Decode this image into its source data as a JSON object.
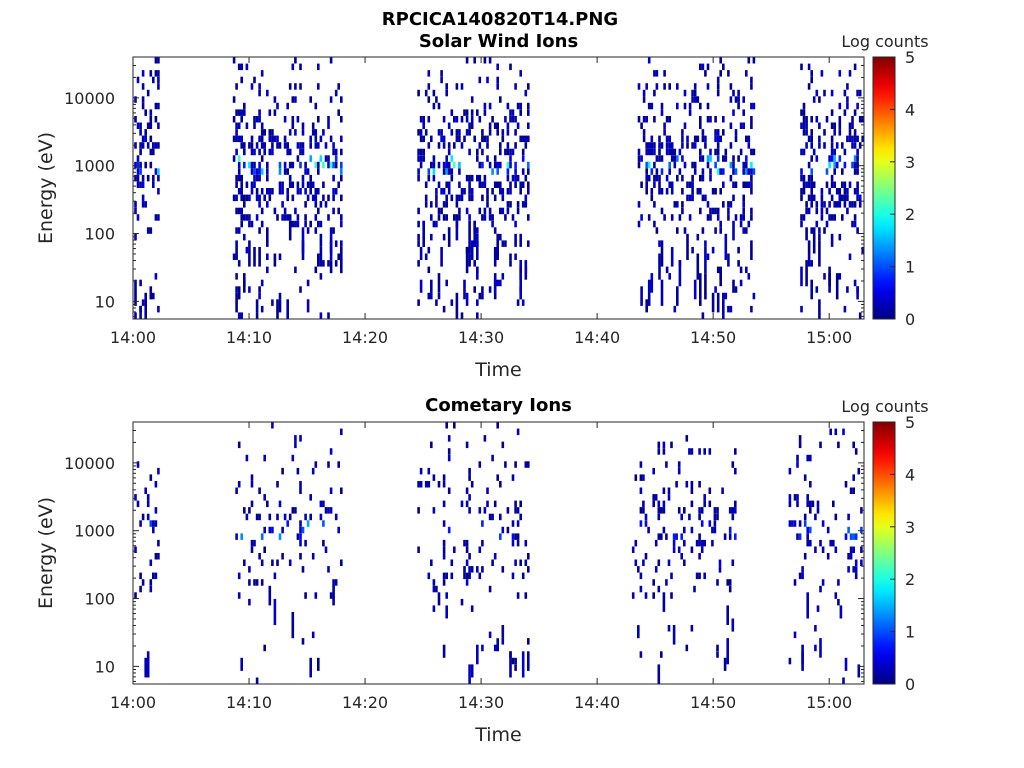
{
  "figure": {
    "title": "RPCICA140820T14.PNG"
  },
  "chart_data": [
    {
      "type": "heatmap",
      "title": "Solar Wind Ions",
      "xlabel": "Time",
      "ylabel": "Energy (eV)",
      "x_range_min": [
        0,
        63
      ],
      "x_ticks": [
        0,
        10,
        20,
        30,
        40,
        50,
        60
      ],
      "x_tick_labels": [
        "14:00",
        "14:10",
        "14:20",
        "14:30",
        "14:40",
        "14:50",
        "15:00"
      ],
      "y_scale": "log",
      "y_range_eV": [
        5.5,
        40000
      ],
      "y_ticks": [
        10,
        100,
        1000,
        10000
      ],
      "y_tick_labels": [
        "10",
        "100",
        "1000",
        "10000"
      ],
      "colorbar": {
        "label": "Log counts",
        "range": [
          0,
          5
        ],
        "ticks": [
          "0",
          "1",
          "2",
          "3",
          "4",
          "5"
        ],
        "colormap": "jet"
      },
      "bursts": [
        {
          "t0": 0.1,
          "t1": 2.1,
          "peak_eV": 1000,
          "peak_log_counts": 2.2
        },
        {
          "t0": 8.6,
          "t1": 18.0,
          "peak_eV": 1000,
          "peak_log_counts": 2.5
        },
        {
          "t0": 24.5,
          "t1": 34.0,
          "peak_eV": 1000,
          "peak_log_counts": 2.3
        },
        {
          "t0": 43.5,
          "t1": 53.5,
          "peak_eV": 1000,
          "peak_log_counts": 2.0
        },
        {
          "t0": 57.5,
          "t1": 62.8,
          "peak_eV": 1000,
          "peak_log_counts": 2.0
        }
      ]
    },
    {
      "type": "heatmap",
      "title": "Cometary Ions",
      "xlabel": "Time",
      "ylabel": "Energy (eV)",
      "x_range_min": [
        0,
        63
      ],
      "x_ticks": [
        0,
        10,
        20,
        30,
        40,
        50,
        60
      ],
      "x_tick_labels": [
        "14:00",
        "14:10",
        "14:20",
        "14:30",
        "14:40",
        "14:50",
        "15:00"
      ],
      "y_scale": "log",
      "y_range_eV": [
        5.5,
        40000
      ],
      "y_ticks": [
        10,
        100,
        1000,
        10000
      ],
      "y_tick_labels": [
        "10",
        "100",
        "1000",
        "10000"
      ],
      "colorbar": {
        "label": "Log counts",
        "range": [
          0,
          5
        ],
        "ticks": [
          "0",
          "1",
          "2",
          "3",
          "4",
          "5"
        ],
        "colormap": "jet"
      },
      "bursts": [
        {
          "t0": 0.1,
          "t1": 2.1,
          "peak_eV": 1000,
          "peak_log_counts": 1.0
        },
        {
          "t0": 8.6,
          "t1": 18.0,
          "peak_eV": 1000,
          "peak_log_counts": 1.6
        },
        {
          "t0": 24.5,
          "t1": 34.0,
          "peak_eV": 1000,
          "peak_log_counts": 1.3
        },
        {
          "t0": 43.0,
          "t1": 52.0,
          "peak_eV": 1000,
          "peak_log_counts": 0.8
        },
        {
          "t0": 56.5,
          "t1": 62.8,
          "peak_eV": 1000,
          "peak_log_counts": 1.2
        }
      ]
    }
  ]
}
